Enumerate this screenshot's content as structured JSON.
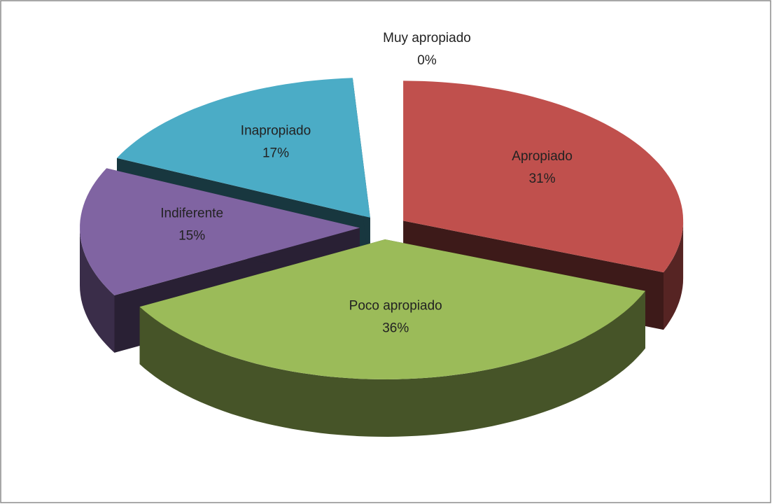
{
  "chart_data": {
    "type": "pie3d",
    "categories": [
      "Muy apropiado",
      "Apropiado",
      "Poco apropiado",
      "Indiferente",
      "Inapropiado"
    ],
    "values": [
      0,
      31,
      36,
      15,
      17
    ],
    "value_labels": [
      "0%",
      "31%",
      "36%",
      "15%",
      "17%"
    ],
    "colors": [
      "#4f81bd",
      "#c0504d",
      "#9bbb59",
      "#8064a2",
      "#4bacc6"
    ]
  }
}
